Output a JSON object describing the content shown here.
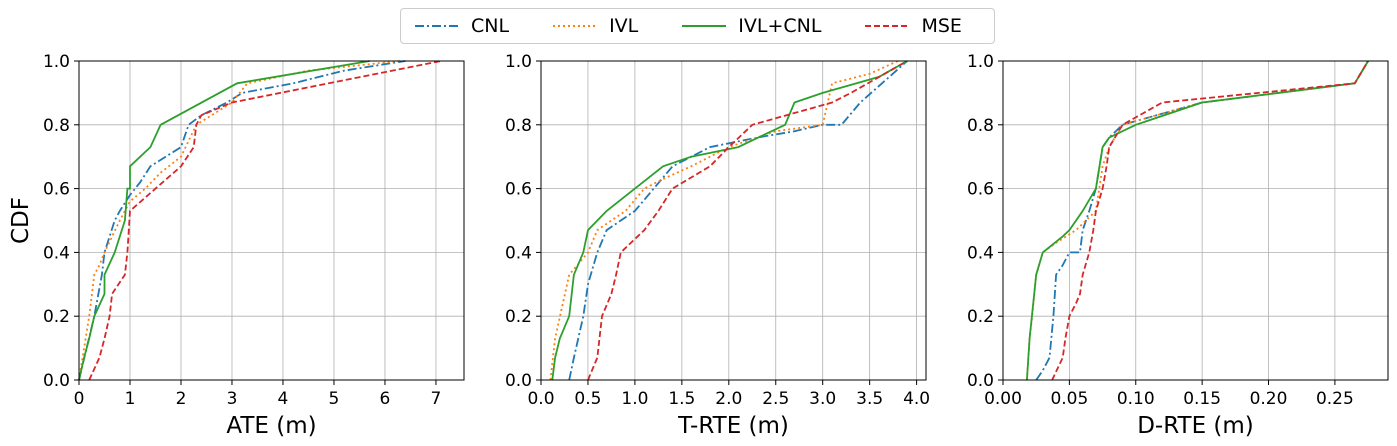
{
  "legend": [
    "CNL",
    "IVL",
    "IVL+CNL",
    "MSE"
  ],
  "colors": {
    "CNL": "#1f77b4",
    "IVL": "#ff7f0e",
    "IVL+CNL": "#2ca02c",
    "MSE": "#d62728"
  },
  "chart_data": [
    {
      "type": "line",
      "xlabel": "ATE (m)",
      "ylabel": "CDF",
      "xlim": [
        0,
        7.55
      ],
      "ylim": [
        0,
        1.0
      ],
      "xticks": [
        0,
        1,
        2,
        3,
        4,
        5,
        6,
        7
      ],
      "xtick_labels": [
        "0",
        "1",
        "2",
        "3",
        "4",
        "5",
        "6",
        "7"
      ],
      "yticks": [
        0.0,
        0.2,
        0.4,
        0.6,
        0.8,
        1.0
      ],
      "ytick_labels": [
        "0.0",
        "0.2",
        "0.4",
        "0.6",
        "0.8",
        "1.0"
      ],
      "grid": true,
      "series": [
        {
          "name": "CNL",
          "x": [
            0.0,
            0.15,
            0.3,
            0.45,
            0.5,
            0.7,
            0.8,
            1.0,
            1.2,
            1.4,
            1.7,
            2.0,
            2.15,
            2.4,
            2.9,
            3.2,
            4.2,
            5.2,
            6.4
          ],
          "y": [
            0.0,
            0.1,
            0.2,
            0.33,
            0.4,
            0.5,
            0.53,
            0.58,
            0.62,
            0.67,
            0.7,
            0.73,
            0.8,
            0.83,
            0.87,
            0.9,
            0.93,
            0.97,
            1.0
          ]
        },
        {
          "name": "IVL",
          "x": [
            0.0,
            0.1,
            0.2,
            0.3,
            0.4,
            0.5,
            0.8,
            1.0,
            1.3,
            1.6,
            2.0,
            2.3,
            3.0,
            3.3,
            4.5,
            6.3
          ],
          "y": [
            0.0,
            0.1,
            0.2,
            0.33,
            0.36,
            0.4,
            0.5,
            0.56,
            0.6,
            0.65,
            0.7,
            0.8,
            0.87,
            0.93,
            0.97,
            1.0
          ]
        },
        {
          "name": "IVL+CNL",
          "x": [
            0.0,
            0.1,
            0.2,
            0.3,
            0.5,
            0.5,
            0.7,
            0.9,
            0.95,
            1.0,
            1.0,
            1.4,
            1.6,
            3.1,
            5.7
          ],
          "y": [
            0.0,
            0.07,
            0.13,
            0.2,
            0.27,
            0.33,
            0.4,
            0.5,
            0.6,
            0.6,
            0.67,
            0.73,
            0.8,
            0.93,
            1.0
          ]
        },
        {
          "name": "MSE",
          "x": [
            0.2,
            0.4,
            0.5,
            0.6,
            0.65,
            0.9,
            0.95,
            1.0,
            1.5,
            2.0,
            2.25,
            2.3,
            2.4,
            3.0,
            7.1
          ],
          "y": [
            0.0,
            0.07,
            0.13,
            0.2,
            0.27,
            0.33,
            0.4,
            0.53,
            0.6,
            0.67,
            0.73,
            0.8,
            0.83,
            0.87,
            1.0
          ]
        }
      ]
    },
    {
      "type": "line",
      "xlabel": "T-RTE (m)",
      "ylabel": "",
      "xlim": [
        0,
        4.1
      ],
      "ylim": [
        0,
        1.0
      ],
      "xticks": [
        0,
        0.5,
        1.0,
        1.5,
        2.0,
        2.5,
        3.0,
        3.5,
        4.0
      ],
      "xtick_labels": [
        "0.0",
        "0.5",
        "1.0",
        "1.5",
        "2.0",
        "2.5",
        "3.0",
        "3.5",
        "4.0"
      ],
      "yticks": [
        0.0,
        0.2,
        0.4,
        0.6,
        0.8,
        1.0
      ],
      "ytick_labels": [
        "0.0",
        "0.2",
        "0.4",
        "0.6",
        "0.8",
        "1.0"
      ],
      "grid": true,
      "series": [
        {
          "name": "CNL",
          "x": [
            0.3,
            0.35,
            0.45,
            0.5,
            0.55,
            0.6,
            0.7,
            1.0,
            1.2,
            1.4,
            1.8,
            2.3,
            2.7,
            3.0,
            3.2,
            3.4,
            3.9
          ],
          "y": [
            0.0,
            0.07,
            0.2,
            0.3,
            0.35,
            0.4,
            0.47,
            0.53,
            0.6,
            0.67,
            0.73,
            0.76,
            0.78,
            0.8,
            0.8,
            0.87,
            1.0
          ]
        },
        {
          "name": "IVL",
          "x": [
            0.1,
            0.15,
            0.3,
            0.5,
            0.6,
            0.9,
            1.1,
            1.3,
            1.6,
            2.0,
            2.5,
            3.0,
            3.1,
            3.5,
            3.8
          ],
          "y": [
            0.0,
            0.13,
            0.33,
            0.4,
            0.47,
            0.53,
            0.6,
            0.63,
            0.67,
            0.73,
            0.78,
            0.8,
            0.93,
            0.96,
            1.0
          ]
        },
        {
          "name": "IVL+CNL",
          "x": [
            0.12,
            0.15,
            0.2,
            0.3,
            0.35,
            0.45,
            0.5,
            0.7,
            1.0,
            1.3,
            1.6,
            2.1,
            2.6,
            2.7,
            3.0,
            3.6,
            3.9
          ],
          "y": [
            0.0,
            0.07,
            0.13,
            0.2,
            0.33,
            0.4,
            0.47,
            0.53,
            0.6,
            0.67,
            0.7,
            0.73,
            0.8,
            0.87,
            0.9,
            0.95,
            1.0
          ]
        },
        {
          "name": "MSE",
          "x": [
            0.5,
            0.6,
            0.65,
            0.75,
            0.8,
            0.85,
            1.1,
            1.25,
            1.4,
            1.8,
            2.0,
            2.25,
            3.1,
            3.3,
            3.9
          ],
          "y": [
            0.0,
            0.07,
            0.2,
            0.27,
            0.33,
            0.4,
            0.47,
            0.53,
            0.6,
            0.67,
            0.73,
            0.8,
            0.87,
            0.9,
            1.0
          ]
        }
      ]
    },
    {
      "type": "line",
      "xlabel": "D-RTE (m)",
      "ylabel": "",
      "xlim": [
        0,
        0.29
      ],
      "ylim": [
        0,
        1.0
      ],
      "xticks": [
        0,
        0.05,
        0.1,
        0.15,
        0.2,
        0.25
      ],
      "xtick_labels": [
        "0.00",
        "0.05",
        "0.10",
        "0.15",
        "0.20",
        "0.25"
      ],
      "yticks": [
        0.0,
        0.2,
        0.4,
        0.6,
        0.8,
        1.0
      ],
      "ytick_labels": [
        "0.0",
        "0.2",
        "0.4",
        "0.6",
        "0.8",
        "1.0"
      ],
      "grid": true,
      "series": [
        {
          "name": "CNL",
          "x": [
            0.025,
            0.03,
            0.035,
            0.038,
            0.04,
            0.045,
            0.05,
            0.058,
            0.06,
            0.065,
            0.07,
            0.075,
            0.08,
            0.09,
            0.15,
            0.265,
            0.275
          ],
          "y": [
            0.0,
            0.03,
            0.07,
            0.2,
            0.33,
            0.36,
            0.4,
            0.4,
            0.47,
            0.53,
            0.6,
            0.73,
            0.76,
            0.8,
            0.87,
            0.93,
            1.0
          ]
        },
        {
          "name": "IVL",
          "x": [
            0.018,
            0.02,
            0.022,
            0.025,
            0.03,
            0.04,
            0.055,
            0.07,
            0.075,
            0.08,
            0.09,
            0.15,
            0.265,
            0.275
          ],
          "y": [
            0.0,
            0.13,
            0.2,
            0.33,
            0.4,
            0.43,
            0.47,
            0.53,
            0.67,
            0.73,
            0.8,
            0.87,
            0.93,
            1.0
          ]
        },
        {
          "name": "IVL+CNL",
          "x": [
            0.018,
            0.02,
            0.025,
            0.03,
            0.045,
            0.05,
            0.06,
            0.07,
            0.075,
            0.08,
            0.1,
            0.15,
            0.265,
            0.275
          ],
          "y": [
            0.0,
            0.13,
            0.33,
            0.4,
            0.45,
            0.47,
            0.53,
            0.6,
            0.73,
            0.76,
            0.8,
            0.87,
            0.93,
            1.0
          ]
        },
        {
          "name": "MSE",
          "x": [
            0.037,
            0.045,
            0.047,
            0.05,
            0.05,
            0.055,
            0.058,
            0.06,
            0.065,
            0.068,
            0.07,
            0.075,
            0.078,
            0.08,
            0.09,
            0.12,
            0.265,
            0.275
          ],
          "y": [
            0.0,
            0.07,
            0.13,
            0.2,
            0.2,
            0.24,
            0.27,
            0.33,
            0.4,
            0.47,
            0.53,
            0.6,
            0.67,
            0.73,
            0.8,
            0.87,
            0.93,
            1.0
          ]
        }
      ]
    }
  ]
}
